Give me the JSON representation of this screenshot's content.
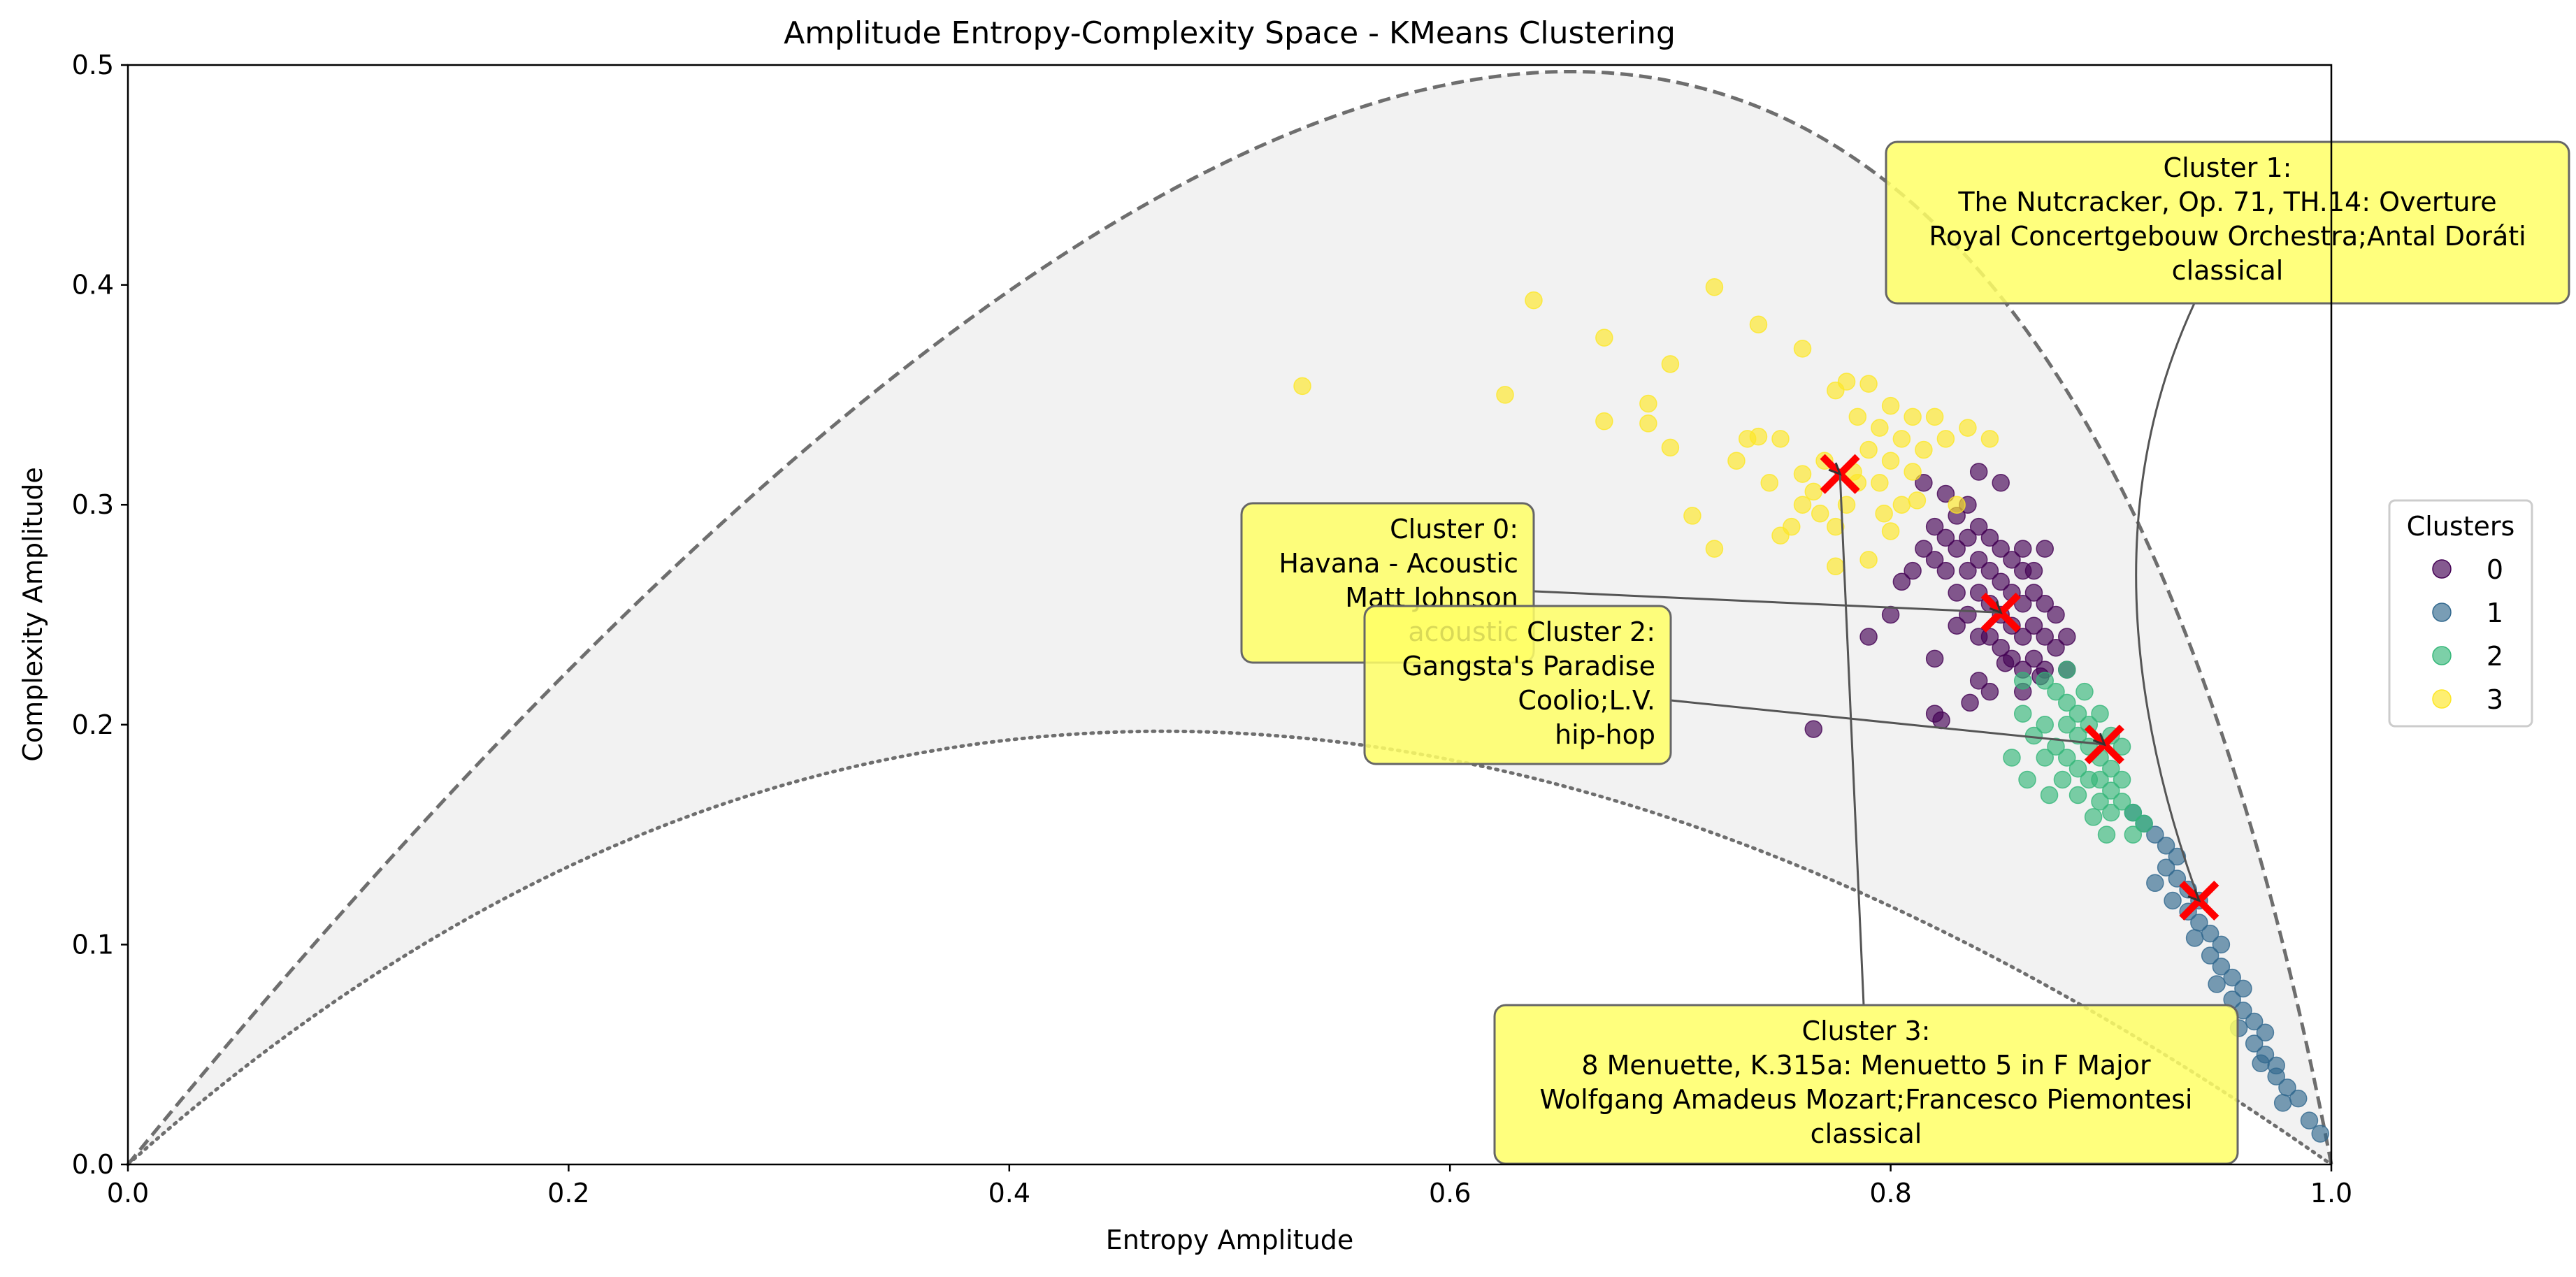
{
  "chart_data": {
    "type": "scatter",
    "title": "Amplitude Entropy-Complexity Space - KMeans Clustering",
    "xlabel": "Entropy Amplitude",
    "ylabel": "Complexity Amplitude",
    "xlim": [
      0.0,
      1.0
    ],
    "ylim": [
      0.0,
      0.5
    ],
    "xticks": [
      "0.0",
      "0.2",
      "0.4",
      "0.6",
      "0.8",
      "1.0"
    ],
    "yticks": [
      "0.0",
      "0.1",
      "0.2",
      "0.3",
      "0.4",
      "0.5"
    ],
    "grid": false,
    "legend": {
      "title": "Clusters",
      "placement": "right (outside plot)",
      "entries": [
        "0",
        "1",
        "2",
        "3"
      ]
    },
    "colors": {
      "cluster_0": "#440154",
      "cluster_1": "#31688e",
      "cluster_2": "#35b779",
      "cluster_3": "#fde725",
      "centroid": "#ff0000",
      "feasible_region": "#f2f2f2",
      "annotation_box": "#ffff66"
    },
    "boundaries": {
      "upper": {
        "style": "dashed",
        "peak": [
          0.655,
          0.497
        ]
      },
      "lower": {
        "style": "dotted",
        "peak": [
          0.47,
          0.197
        ]
      }
    },
    "series": [
      {
        "name": "0",
        "points": [
          [
            0.805,
            0.265
          ],
          [
            0.81,
            0.27
          ],
          [
            0.815,
            0.28
          ],
          [
            0.82,
            0.29
          ],
          [
            0.82,
            0.275
          ],
          [
            0.825,
            0.27
          ],
          [
            0.825,
            0.285
          ],
          [
            0.83,
            0.26
          ],
          [
            0.83,
            0.28
          ],
          [
            0.83,
            0.295
          ],
          [
            0.835,
            0.25
          ],
          [
            0.835,
            0.27
          ],
          [
            0.835,
            0.285
          ],
          [
            0.84,
            0.26
          ],
          [
            0.84,
            0.275
          ],
          [
            0.84,
            0.29
          ],
          [
            0.845,
            0.24
          ],
          [
            0.845,
            0.255
          ],
          [
            0.845,
            0.27
          ],
          [
            0.845,
            0.285
          ],
          [
            0.85,
            0.235
          ],
          [
            0.85,
            0.25
          ],
          [
            0.85,
            0.265
          ],
          [
            0.85,
            0.28
          ],
          [
            0.855,
            0.23
          ],
          [
            0.855,
            0.245
          ],
          [
            0.855,
            0.26
          ],
          [
            0.855,
            0.275
          ],
          [
            0.86,
            0.225
          ],
          [
            0.86,
            0.24
          ],
          [
            0.86,
            0.255
          ],
          [
            0.86,
            0.27
          ],
          [
            0.865,
            0.23
          ],
          [
            0.865,
            0.245
          ],
          [
            0.865,
            0.26
          ],
          [
            0.87,
            0.225
          ],
          [
            0.87,
            0.24
          ],
          [
            0.87,
            0.255
          ],
          [
            0.875,
            0.235
          ],
          [
            0.875,
            0.25
          ],
          [
            0.88,
            0.24
          ],
          [
            0.88,
            0.225
          ],
          [
            0.815,
            0.31
          ],
          [
            0.825,
            0.305
          ],
          [
            0.835,
            0.3
          ],
          [
            0.84,
            0.315
          ],
          [
            0.85,
            0.31
          ],
          [
            0.86,
            0.28
          ],
          [
            0.865,
            0.27
          ],
          [
            0.87,
            0.28
          ],
          [
            0.84,
            0.24
          ],
          [
            0.83,
            0.245
          ],
          [
            0.82,
            0.23
          ],
          [
            0.8,
            0.25
          ],
          [
            0.82,
            0.205
          ],
          [
            0.84,
            0.22
          ],
          [
            0.845,
            0.215
          ],
          [
            0.86,
            0.215
          ],
          [
            0.79,
            0.24
          ],
          [
            0.765,
            0.198
          ],
          [
            0.823,
            0.202
          ],
          [
            0.836,
            0.21
          ],
          [
            0.852,
            0.228
          ],
          [
            0.868,
            0.222
          ]
        ]
      },
      {
        "name": "1",
        "points": [
          [
            0.915,
            0.155
          ],
          [
            0.92,
            0.15
          ],
          [
            0.925,
            0.145
          ],
          [
            0.925,
            0.135
          ],
          [
            0.93,
            0.14
          ],
          [
            0.93,
            0.13
          ],
          [
            0.935,
            0.125
          ],
          [
            0.935,
            0.115
          ],
          [
            0.94,
            0.12
          ],
          [
            0.94,
            0.11
          ],
          [
            0.945,
            0.105
          ],
          [
            0.945,
            0.095
          ],
          [
            0.95,
            0.1
          ],
          [
            0.95,
            0.09
          ],
          [
            0.955,
            0.085
          ],
          [
            0.955,
            0.075
          ],
          [
            0.96,
            0.08
          ],
          [
            0.96,
            0.07
          ],
          [
            0.965,
            0.065
          ],
          [
            0.965,
            0.055
          ],
          [
            0.97,
            0.06
          ],
          [
            0.97,
            0.05
          ],
          [
            0.975,
            0.045
          ],
          [
            0.975,
            0.04
          ],
          [
            0.98,
            0.035
          ],
          [
            0.985,
            0.03
          ],
          [
            0.99,
            0.02
          ],
          [
            0.995,
            0.014
          ],
          [
            0.91,
            0.16
          ],
          [
            0.92,
            0.128
          ],
          [
            0.928,
            0.12
          ],
          [
            0.938,
            0.103
          ],
          [
            0.948,
            0.082
          ],
          [
            0.958,
            0.062
          ],
          [
            0.968,
            0.046
          ],
          [
            0.978,
            0.028
          ]
        ]
      },
      {
        "name": "2",
        "points": [
          [
            0.87,
            0.22
          ],
          [
            0.875,
            0.215
          ],
          [
            0.88,
            0.21
          ],
          [
            0.88,
            0.2
          ],
          [
            0.885,
            0.205
          ],
          [
            0.885,
            0.195
          ],
          [
            0.89,
            0.2
          ],
          [
            0.89,
            0.19
          ],
          [
            0.895,
            0.185
          ],
          [
            0.895,
            0.175
          ],
          [
            0.9,
            0.18
          ],
          [
            0.9,
            0.17
          ],
          [
            0.905,
            0.175
          ],
          [
            0.905,
            0.165
          ],
          [
            0.91,
            0.16
          ],
          [
            0.91,
            0.15
          ],
          [
            0.915,
            0.155
          ],
          [
            0.87,
            0.2
          ],
          [
            0.875,
            0.19
          ],
          [
            0.88,
            0.185
          ],
          [
            0.885,
            0.18
          ],
          [
            0.89,
            0.175
          ],
          [
            0.895,
            0.165
          ],
          [
            0.9,
            0.16
          ],
          [
            0.86,
            0.205
          ],
          [
            0.865,
            0.195
          ],
          [
            0.87,
            0.185
          ],
          [
            0.878,
            0.175
          ],
          [
            0.885,
            0.168
          ],
          [
            0.892,
            0.158
          ],
          [
            0.898,
            0.15
          ],
          [
            0.88,
            0.225
          ],
          [
            0.888,
            0.215
          ],
          [
            0.895,
            0.205
          ],
          [
            0.9,
            0.195
          ],
          [
            0.86,
            0.22
          ],
          [
            0.855,
            0.185
          ],
          [
            0.862,
            0.175
          ],
          [
            0.872,
            0.168
          ],
          [
            0.905,
            0.19
          ]
        ]
      },
      {
        "name": "3",
        "points": [
          [
            0.533,
            0.354
          ],
          [
            0.625,
            0.35
          ],
          [
            0.638,
            0.393
          ],
          [
            0.67,
            0.338
          ],
          [
            0.67,
            0.376
          ],
          [
            0.69,
            0.346
          ],
          [
            0.69,
            0.337
          ],
          [
            0.7,
            0.364
          ],
          [
            0.7,
            0.326
          ],
          [
            0.72,
            0.399
          ],
          [
            0.72,
            0.28
          ],
          [
            0.71,
            0.295
          ],
          [
            0.73,
            0.32
          ],
          [
            0.735,
            0.33
          ],
          [
            0.74,
            0.331
          ],
          [
            0.74,
            0.382
          ],
          [
            0.745,
            0.31
          ],
          [
            0.75,
            0.33
          ],
          [
            0.75,
            0.286
          ],
          [
            0.755,
            0.29
          ],
          [
            0.76,
            0.371
          ],
          [
            0.76,
            0.3
          ],
          [
            0.765,
            0.306
          ],
          [
            0.77,
            0.32
          ],
          [
            0.775,
            0.352
          ],
          [
            0.775,
            0.29
          ],
          [
            0.78,
            0.356
          ],
          [
            0.78,
            0.3
          ],
          [
            0.785,
            0.34
          ],
          [
            0.785,
            0.31
          ],
          [
            0.79,
            0.355
          ],
          [
            0.79,
            0.325
          ],
          [
            0.795,
            0.335
          ],
          [
            0.795,
            0.31
          ],
          [
            0.8,
            0.345
          ],
          [
            0.8,
            0.32
          ],
          [
            0.805,
            0.33
          ],
          [
            0.805,
            0.3
          ],
          [
            0.81,
            0.34
          ],
          [
            0.81,
            0.315
          ],
          [
            0.815,
            0.325
          ],
          [
            0.82,
            0.34
          ],
          [
            0.825,
            0.33
          ],
          [
            0.83,
            0.3
          ],
          [
            0.835,
            0.335
          ],
          [
            0.845,
            0.33
          ],
          [
            0.775,
            0.272
          ],
          [
            0.79,
            0.275
          ],
          [
            0.8,
            0.288
          ],
          [
            0.812,
            0.302
          ],
          [
            0.768,
            0.296
          ],
          [
            0.783,
            0.315
          ],
          [
            0.797,
            0.296
          ],
          [
            0.76,
            0.314
          ]
        ]
      }
    ],
    "centroids": [
      {
        "cluster": "0",
        "x": 0.85,
        "y": 0.251
      },
      {
        "cluster": "1",
        "x": 0.94,
        "y": 0.12
      },
      {
        "cluster": "2",
        "x": 0.897,
        "y": 0.191
      },
      {
        "cluster": "3",
        "x": 0.777,
        "y": 0.314
      }
    ],
    "annotations": [
      {
        "cluster": "0",
        "lines": [
          "Cluster 0:",
          "Havana - Acoustic",
          "Matt Johnson",
          "acoustic"
        ],
        "target": [
          0.85,
          0.251
        ]
      },
      {
        "cluster": "1",
        "lines": [
          "Cluster 1:",
          "The Nutcracker, Op. 71, TH.14: Overture",
          "Royal Concertgebouw Orchestra;Antal Doráti",
          "classical"
        ],
        "target": [
          0.94,
          0.12
        ]
      },
      {
        "cluster": "2",
        "lines": [
          "Cluster 2:",
          "Gangsta's Paradise",
          "Coolio;L.V.",
          "hip-hop"
        ],
        "target": [
          0.897,
          0.191
        ]
      },
      {
        "cluster": "3",
        "lines": [
          "Cluster 3:",
          "8 Menuette, K.315a: Menuetto 5 in F Major",
          "Wolfgang Amadeus Mozart;Francesco Piemontesi",
          "classical"
        ],
        "target": [
          0.777,
          0.314
        ]
      }
    ]
  }
}
